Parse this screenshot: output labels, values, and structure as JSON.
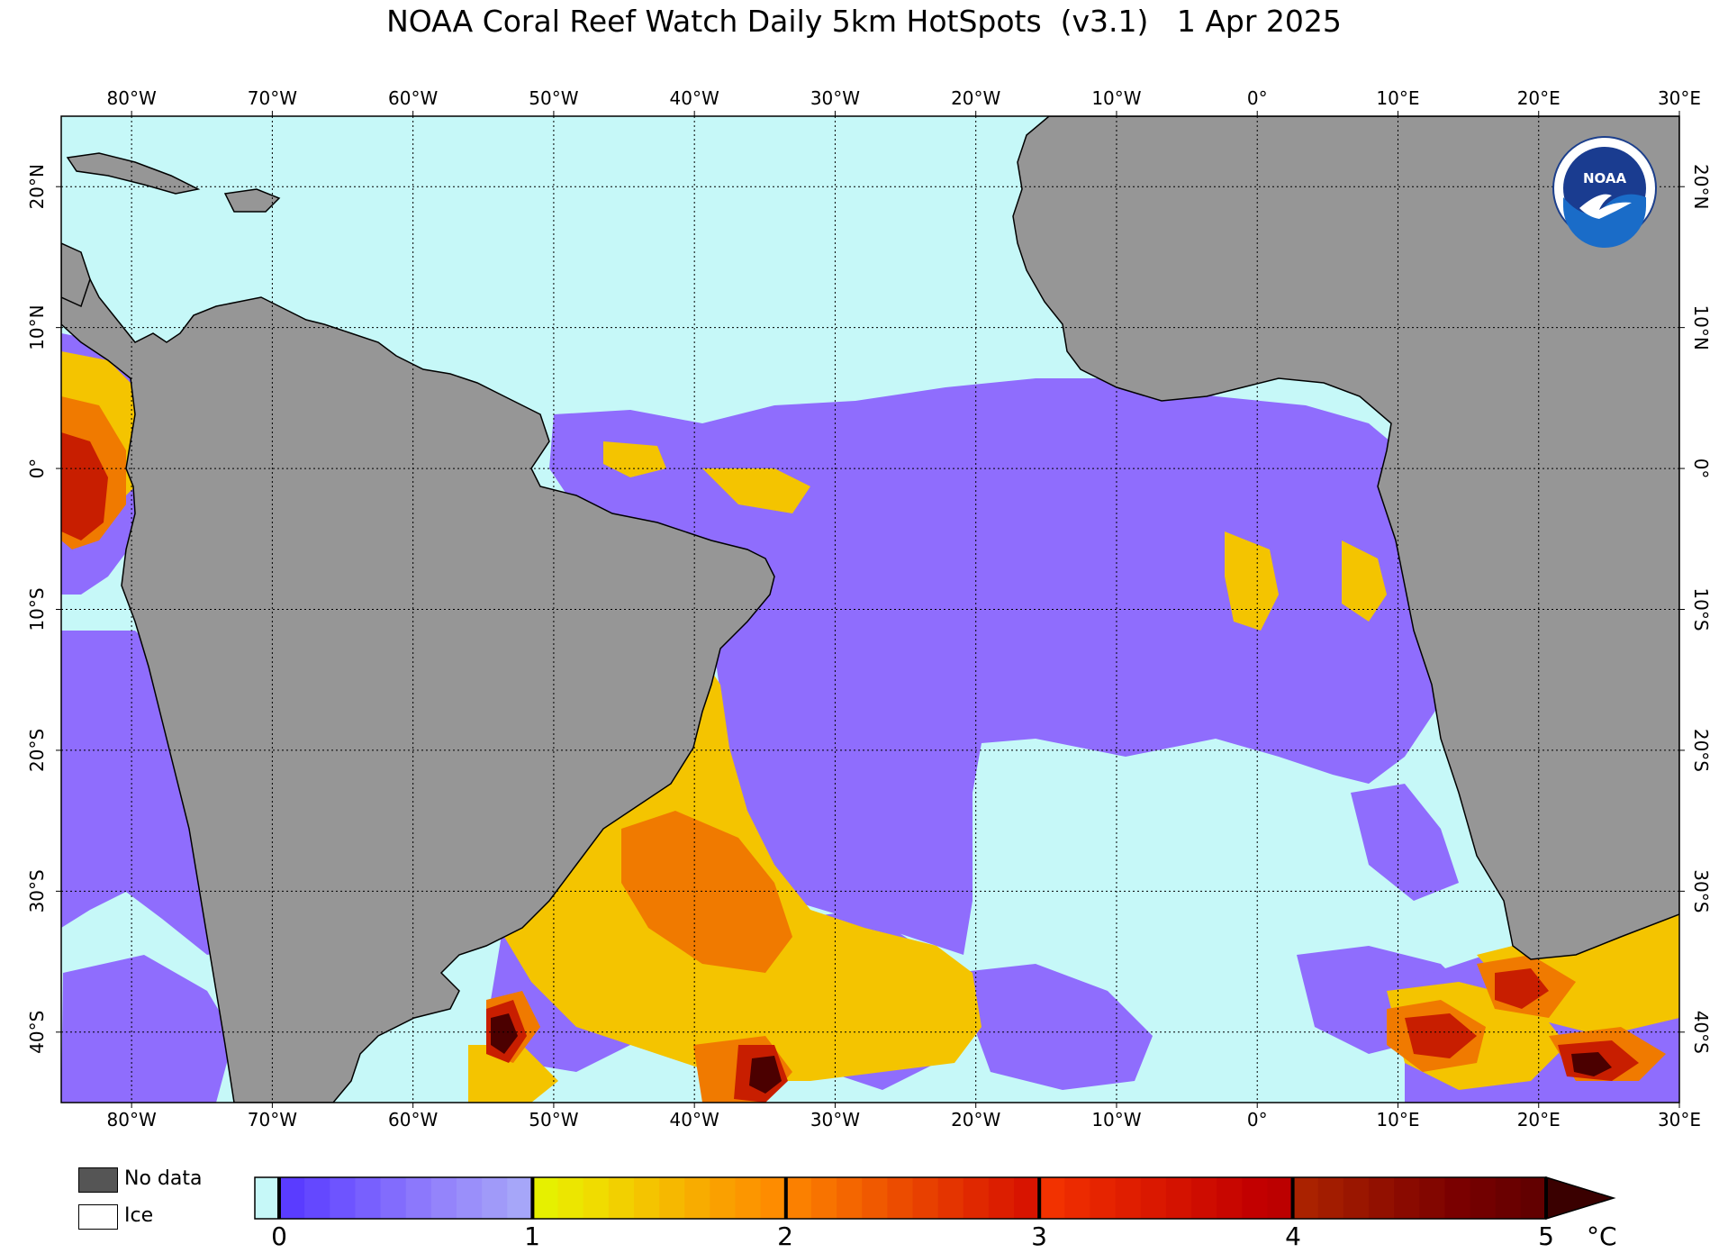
{
  "title": "NOAA Coral Reef Watch Daily 5km HotSpots  (v3.1)   1 Apr 2025",
  "map": {
    "lon_range": [
      -85,
      30
    ],
    "lat_range": [
      -45,
      25
    ],
    "lon_labels": [
      "80°W",
      "70°W",
      "60°W",
      "50°W",
      "40°W",
      "30°W",
      "20°W",
      "10°W",
      "0°",
      "10°E",
      "20°E",
      "30°E"
    ],
    "lon_values": [
      -80,
      -70,
      -60,
      -50,
      -40,
      -30,
      -20,
      -10,
      0,
      10,
      20,
      30
    ],
    "lat_labels": [
      "20°N",
      "10°N",
      "0°",
      "10°S",
      "20°S",
      "30°S",
      "40°S"
    ],
    "lat_values": [
      20,
      10,
      0,
      -10,
      -20,
      -30,
      -40
    ],
    "colors": {
      "ocean": "#c6f8f8",
      "land": "#969696",
      "hotspot_0_1": "#8f6dfd",
      "hotspot_1_2": "#f4c400",
      "hotspot_2_3": "#f07a00",
      "hotspot_3_4": "#c81e00",
      "hotspot_4_5": "#4b0000"
    },
    "logo": {
      "text": "NOAA",
      "icon": "noaa-logo-icon"
    }
  },
  "legend": {
    "no_data_label": "No data",
    "ice_label": "Ice",
    "no_data_color": "#555555",
    "ice_color": "#ffffff"
  },
  "colorbar": {
    "ticks": [
      "0",
      "1",
      "2",
      "3",
      "4",
      "5"
    ],
    "unit": "°C",
    "colors": [
      "#c6f8f8",
      "#5a3cff",
      "#6448ff",
      "#6e54ff",
      "#7860fe",
      "#826cfd",
      "#8c78fc",
      "#9484fb",
      "#9a8ffa",
      "#a09af9",
      "#a6a6f9",
      "#e6f000",
      "#ece600",
      "#f0dc00",
      "#f2d000",
      "#f4c400",
      "#f6b800",
      "#f8ac00",
      "#faa000",
      "#fc9600",
      "#fe8c00",
      "#fb8000",
      "#f87300",
      "#f46600",
      "#f05900",
      "#ec4c00",
      "#e84000",
      "#e43400",
      "#e02800",
      "#dc1e00",
      "#d81400",
      "#f23200",
      "#ec2a00",
      "#e62400",
      "#e01e00",
      "#da1800",
      "#d41200",
      "#ce0c00",
      "#c80600",
      "#c20000",
      "#bc0000",
      "#aa2200",
      "#a21c00",
      "#9a1600",
      "#921000",
      "#8a0a00",
      "#820600",
      "#7a0000",
      "#720000",
      "#6a0000",
      "#620000",
      "#3a0000"
    ]
  }
}
